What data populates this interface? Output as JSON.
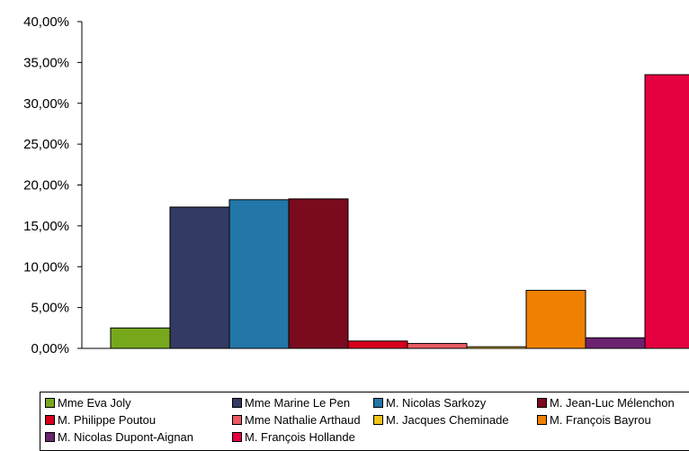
{
  "chart_data": {
    "type": "bar",
    "title": "",
    "xlabel": "",
    "ylabel": "",
    "ylim": [
      0,
      40
    ],
    "yticks": [
      "0,00%",
      "5,00%",
      "10,00%",
      "15,00%",
      "20,00%",
      "25,00%",
      "30,00%",
      "35,00%",
      "40,00%"
    ],
    "grid": false,
    "legend_position": "bottom",
    "categories": [
      "Mme Eva Joly",
      "Mme Marine Le Pen",
      "M. Nicolas Sarkozy",
      "M. Jean-Luc Mélenchon",
      "M. Philippe Poutou",
      "Mme Nathalie Arthaud",
      "M. Jacques Cheminade",
      "M. François Bayrou",
      "M. Nicolas Dupont-Aignan",
      "M. François Hollande"
    ],
    "legend_labels": [
      "Mme Eva Joly",
      "Mme Marine Le Pen",
      "M. Nicolas Sarkozy",
      "M. Jean-Luc Mélenchon",
      "M. Philippe Poutou",
      "Mme Nathalie Arthaud",
      "M. Jacques Cheminade",
      "M. François Bayrou",
      "M. Nicolas Dupont-Aignan",
      "M. François Hollande"
    ],
    "values": [
      2.5,
      17.3,
      18.2,
      18.3,
      0.9,
      0.6,
      0.2,
      7.1,
      1.3,
      33.5
    ],
    "colors": [
      "#77a81c",
      "#333a63",
      "#2276a8",
      "#7a0a1e",
      "#d5001c",
      "#ea5b63",
      "#f0c419",
      "#f08000",
      "#6b2370",
      "#e5003f"
    ]
  }
}
